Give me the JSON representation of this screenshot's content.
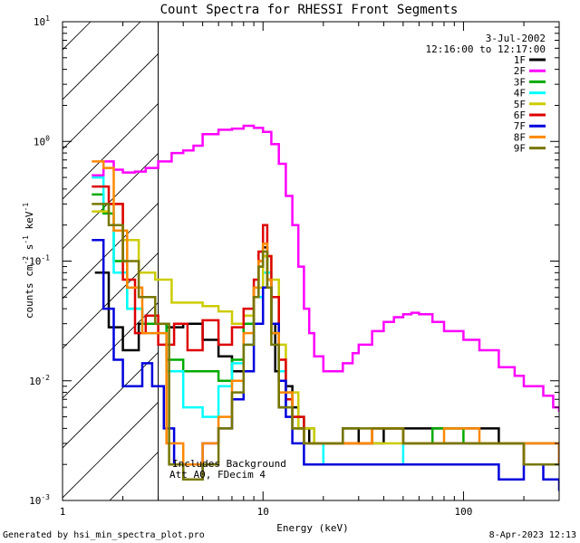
{
  "chart_data": {
    "type": "line",
    "title": "Count Spectra for RHESSI Front Segments",
    "xlabel": "Energy (keV)",
    "ylabel_parts": [
      "counts cm",
      "-2",
      " s",
      "-1",
      " keV",
      "-1"
    ],
    "x_scale": "log",
    "y_scale": "log",
    "xlim": [
      1,
      300
    ],
    "ylim": [
      0.001,
      10
    ],
    "x_ticks": [
      {
        "value": 1,
        "label": "1"
      },
      {
        "value": 10,
        "label": "10"
      },
      {
        "value": 100,
        "label": "100"
      }
    ],
    "y_ticks": [
      {
        "value": 0.001,
        "base": "10",
        "exp": "-3"
      },
      {
        "value": 0.01,
        "base": "10",
        "exp": "-2"
      },
      {
        "value": 0.1,
        "base": "10",
        "exp": "-1"
      },
      {
        "value": 1,
        "base": "10",
        "exp": "0"
      },
      {
        "value": 10,
        "base": "10",
        "exp": "1"
      }
    ],
    "date": "3-Jul-2002",
    "time_range": "12:16:00 to 12:17:00",
    "hatched_region_max_keV": 3,
    "annotations": [
      "Includes Background",
      "Att A0, FDecim 4"
    ],
    "series": [
      {
        "name": "1F",
        "color": "#000000",
        "x": [
          1.45,
          1.7,
          2.0,
          2.4,
          2.8,
          3.3,
          4,
          5,
          6,
          7,
          8,
          9,
          9.5,
          10,
          10.5,
          11,
          11.5,
          12,
          13,
          14,
          15,
          17,
          20,
          25,
          30,
          40,
          60,
          80,
          100,
          150,
          200,
          250,
          300
        ],
        "y": [
          0.08,
          0.028,
          0.018,
          0.03,
          0.03,
          0.028,
          0.03,
          0.022,
          0.016,
          0.012,
          0.03,
          0.05,
          0.1,
          0.13,
          0.07,
          0.03,
          0.012,
          0.006,
          0.009,
          0.006,
          0.004,
          0.003,
          0.003,
          0.004,
          0.003,
          0.004,
          0.004,
          0.004,
          0.004,
          0.003,
          0.003,
          0.003,
          0.002
        ]
      },
      {
        "name": "2F",
        "color": "#ff00ff",
        "x": [
          1.4,
          1.6,
          1.8,
          2.0,
          2.3,
          2.6,
          3.0,
          3.5,
          4,
          4.5,
          5,
          6,
          7,
          8,
          9,
          10,
          11,
          12,
          13,
          14,
          15,
          16,
          17,
          18,
          20,
          22,
          25,
          28,
          30,
          35,
          40,
          45,
          50,
          55,
          60,
          70,
          80,
          100,
          120,
          150,
          180,
          200,
          250,
          280,
          300
        ],
        "y": [
          0.52,
          0.68,
          0.58,
          0.55,
          0.56,
          0.6,
          0.68,
          0.8,
          0.84,
          0.92,
          1.15,
          1.25,
          1.28,
          1.35,
          1.3,
          1.2,
          0.95,
          0.65,
          0.35,
          0.2,
          0.09,
          0.04,
          0.025,
          0.016,
          0.012,
          0.012,
          0.014,
          0.017,
          0.02,
          0.026,
          0.031,
          0.034,
          0.036,
          0.037,
          0.036,
          0.031,
          0.026,
          0.022,
          0.018,
          0.013,
          0.011,
          0.009,
          0.0075,
          0.006,
          0.0055
        ]
      },
      {
        "name": "3F",
        "color": "#00aa00",
        "x": [
          1.4,
          1.6,
          1.8,
          2.1,
          2.5,
          3.3,
          4,
          5,
          6,
          7,
          8,
          9,
          9.5,
          10,
          10.5,
          11,
          12,
          13,
          14,
          16,
          18,
          22,
          28,
          35,
          50,
          70,
          100,
          150,
          200,
          300
        ],
        "y": [
          0.36,
          0.25,
          0.1,
          0.04,
          0.03,
          0.015,
          0.012,
          0.012,
          0.01,
          0.015,
          0.03,
          0.06,
          0.09,
          0.11,
          0.06,
          0.025,
          0.01,
          0.008,
          0.005,
          0.004,
          0.003,
          0.003,
          0.003,
          0.004,
          0.003,
          0.004,
          0.003,
          0.003,
          0.002,
          0.002
        ]
      },
      {
        "name": "4F",
        "color": "#00ffff",
        "x": [
          1.4,
          1.6,
          1.8,
          2.1,
          2.5,
          3.3,
          4,
          5,
          6,
          7,
          8,
          9,
          10,
          11,
          12,
          13,
          14,
          16,
          20,
          30,
          50,
          100,
          200,
          300
        ],
        "y": [
          0.5,
          0.3,
          0.08,
          0.04,
          0.025,
          0.012,
          0.006,
          0.005,
          0.009,
          0.014,
          0.02,
          0.05,
          0.08,
          0.03,
          0.012,
          0.006,
          0.004,
          0.003,
          0.002,
          0.002,
          0.003,
          0.003,
          0.002,
          0.002
        ]
      },
      {
        "name": "5F",
        "color": "#cccc00",
        "x": [
          1.4,
          1.7,
          2.0,
          2.4,
          2.9,
          3.5,
          4.2,
          5,
          6,
          7,
          8,
          9,
          10,
          11,
          12,
          13,
          15,
          18,
          25,
          40,
          60,
          100,
          200,
          300
        ],
        "y": [
          0.26,
          0.3,
          0.15,
          0.08,
          0.07,
          0.045,
          0.045,
          0.042,
          0.038,
          0.03,
          0.035,
          0.06,
          0.11,
          0.07,
          0.02,
          0.008,
          0.004,
          0.003,
          0.003,
          0.003,
          0.003,
          0.003,
          0.002,
          0.002
        ]
      },
      {
        "name": "6F",
        "color": "#dd0000",
        "x": [
          1.4,
          1.7,
          2.0,
          2.3,
          2.6,
          3.0,
          3.6,
          4.2,
          5,
          6,
          7,
          8,
          9,
          9.5,
          10,
          10.5,
          11,
          12,
          13,
          14,
          16,
          20,
          25,
          35,
          50,
          80,
          120,
          200,
          300
        ],
        "y": [
          0.42,
          0.3,
          0.07,
          0.025,
          0.035,
          0.02,
          0.03,
          0.018,
          0.032,
          0.02,
          0.028,
          0.04,
          0.07,
          0.12,
          0.2,
          0.11,
          0.05,
          0.015,
          0.007,
          0.005,
          0.003,
          0.003,
          0.003,
          0.004,
          0.003,
          0.003,
          0.003,
          0.002,
          0.002
        ]
      },
      {
        "name": "7F",
        "color": "#0000dd",
        "x": [
          1.4,
          1.6,
          1.8,
          2.0,
          2.2,
          2.5,
          2.8,
          3.2,
          3.6,
          4,
          5,
          6,
          7,
          8,
          9,
          10,
          11,
          12,
          13,
          14,
          16,
          20,
          30,
          50,
          80,
          100,
          150,
          200,
          250,
          300
        ],
        "y": [
          0.15,
          0.04,
          0.015,
          0.009,
          0.009,
          0.014,
          0.009,
          0.004,
          0.002,
          0.0015,
          0.003,
          0.004,
          0.007,
          0.012,
          0.03,
          0.06,
          0.03,
          0.01,
          0.005,
          0.003,
          0.002,
          0.002,
          0.002,
          0.002,
          0.002,
          0.002,
          0.0015,
          0.002,
          0.0015,
          0.0012
        ]
      },
      {
        "name": "8F",
        "color": "#ff8800",
        "x": [
          1.4,
          1.6,
          1.8,
          2.1,
          2.5,
          3.3,
          4,
          5,
          6,
          7,
          8,
          9,
          9.5,
          10,
          10.5,
          11,
          12,
          14,
          16,
          20,
          25,
          35,
          50,
          80,
          120,
          200,
          300
        ],
        "y": [
          0.68,
          0.6,
          0.18,
          0.06,
          0.025,
          0.003,
          0.002,
          0.003,
          0.005,
          0.01,
          0.025,
          0.06,
          0.1,
          0.14,
          0.07,
          0.025,
          0.008,
          0.004,
          0.003,
          0.003,
          0.003,
          0.004,
          0.003,
          0.004,
          0.003,
          0.003,
          0.002
        ]
      },
      {
        "name": "9F",
        "color": "#777700",
        "x": [
          1.4,
          1.7,
          2.0,
          2.4,
          2.9,
          3.4,
          4,
          5,
          6,
          7,
          8,
          9,
          9.5,
          10,
          10.5,
          11,
          12,
          14,
          16,
          20,
          25,
          35,
          50,
          80,
          120,
          200,
          300
        ],
        "y": [
          0.3,
          0.2,
          0.1,
          0.05,
          0.03,
          0.002,
          0.0015,
          0.002,
          0.004,
          0.008,
          0.02,
          0.05,
          0.09,
          0.12,
          0.06,
          0.02,
          0.006,
          0.004,
          0.003,
          0.003,
          0.004,
          0.004,
          0.003,
          0.003,
          0.003,
          0.002,
          0.002
        ]
      }
    ]
  },
  "footer": {
    "left": "Generated by hsi_min_spectra_plot.pro",
    "right": "8-Apr-2023 12:13"
  }
}
